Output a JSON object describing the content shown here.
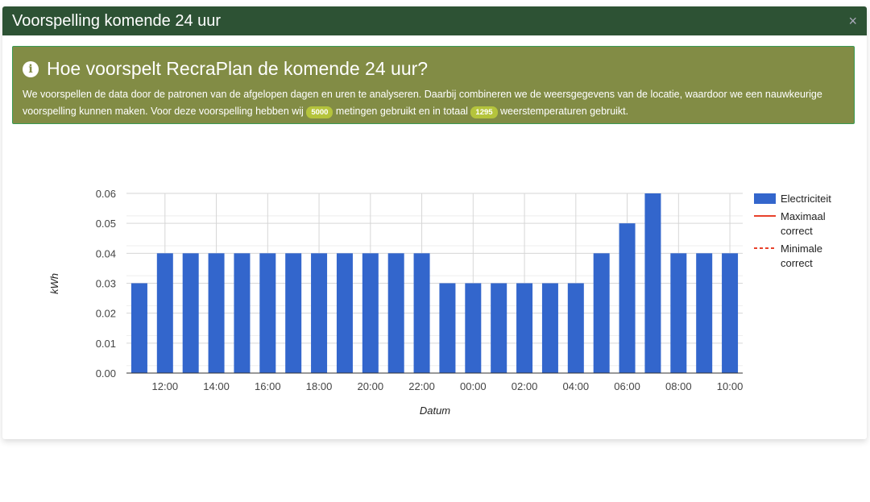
{
  "header": {
    "title": "Voorspelling komende 24 uur",
    "close": "×"
  },
  "info": {
    "title": "Hoe voorspelt RecraPlan de komende 24 uur?",
    "text1": "We voorspellen de data door de patronen van de afgelopen dagen en uren te analyseren. Daarbij combineren we de weersgegevens van de locatie, waardoor we een nauwkeurige voorspelling kunnen maken. Voor deze voorspelling hebben wij ",
    "badge1": "5000",
    "text2": " metingen gebruikt en in totaal ",
    "badge2": "1295",
    "text3": " weerstemperaturen gebruikt."
  },
  "chart_data": {
    "type": "bar",
    "xlabel": "Datum",
    "ylabel": "kWh",
    "ylim": [
      0,
      0.06
    ],
    "yticks": [
      "0.00",
      "0.01",
      "0.02",
      "0.03",
      "0.04",
      "0.05",
      "0.06"
    ],
    "categories": [
      "11:00",
      "12:00",
      "13:00",
      "14:00",
      "15:00",
      "16:00",
      "17:00",
      "18:00",
      "19:00",
      "20:00",
      "21:00",
      "22:00",
      "23:00",
      "00:00",
      "01:00",
      "02:00",
      "03:00",
      "04:00",
      "05:00",
      "06:00",
      "07:00",
      "08:00",
      "09:00",
      "10:00"
    ],
    "xticks": [
      "12:00",
      "14:00",
      "16:00",
      "18:00",
      "20:00",
      "22:00",
      "00:00",
      "02:00",
      "04:00",
      "06:00",
      "08:00",
      "10:00"
    ],
    "series": [
      {
        "name": "Electriciteit",
        "color": "#3366cc",
        "values": [
          0.03,
          0.04,
          0.04,
          0.04,
          0.04,
          0.04,
          0.04,
          0.04,
          0.04,
          0.04,
          0.04,
          0.04,
          0.03,
          0.03,
          0.03,
          0.03,
          0.03,
          0.03,
          0.04,
          0.05,
          0.06,
          0.04,
          0.04,
          0.04
        ]
      }
    ],
    "legend": [
      {
        "label": "Electriciteit",
        "style": "box",
        "color": "#3366cc"
      },
      {
        "label": "Maximaal correct",
        "style": "solid",
        "color": "#e8412b"
      },
      {
        "label": "Minimale correct",
        "style": "dashed",
        "color": "#e8412b"
      }
    ],
    "legend_position": "right",
    "grid": true
  }
}
